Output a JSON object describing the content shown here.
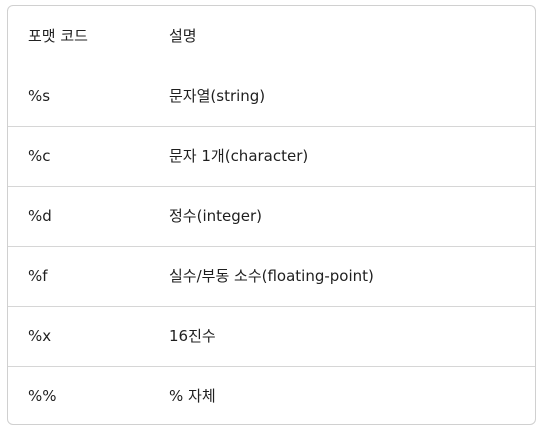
{
  "table": {
    "headers": [
      "포맷 코드",
      "설명"
    ],
    "rows": [
      [
        "%s",
        "문자열(string)"
      ],
      [
        "%c",
        "문자 1개(character)"
      ],
      [
        "%d",
        "정수(integer)"
      ],
      [
        "%f",
        "실수/부동 소수(floating-point)"
      ],
      [
        "%x",
        "16진수"
      ],
      [
        "%%",
        "% 자체"
      ]
    ]
  }
}
